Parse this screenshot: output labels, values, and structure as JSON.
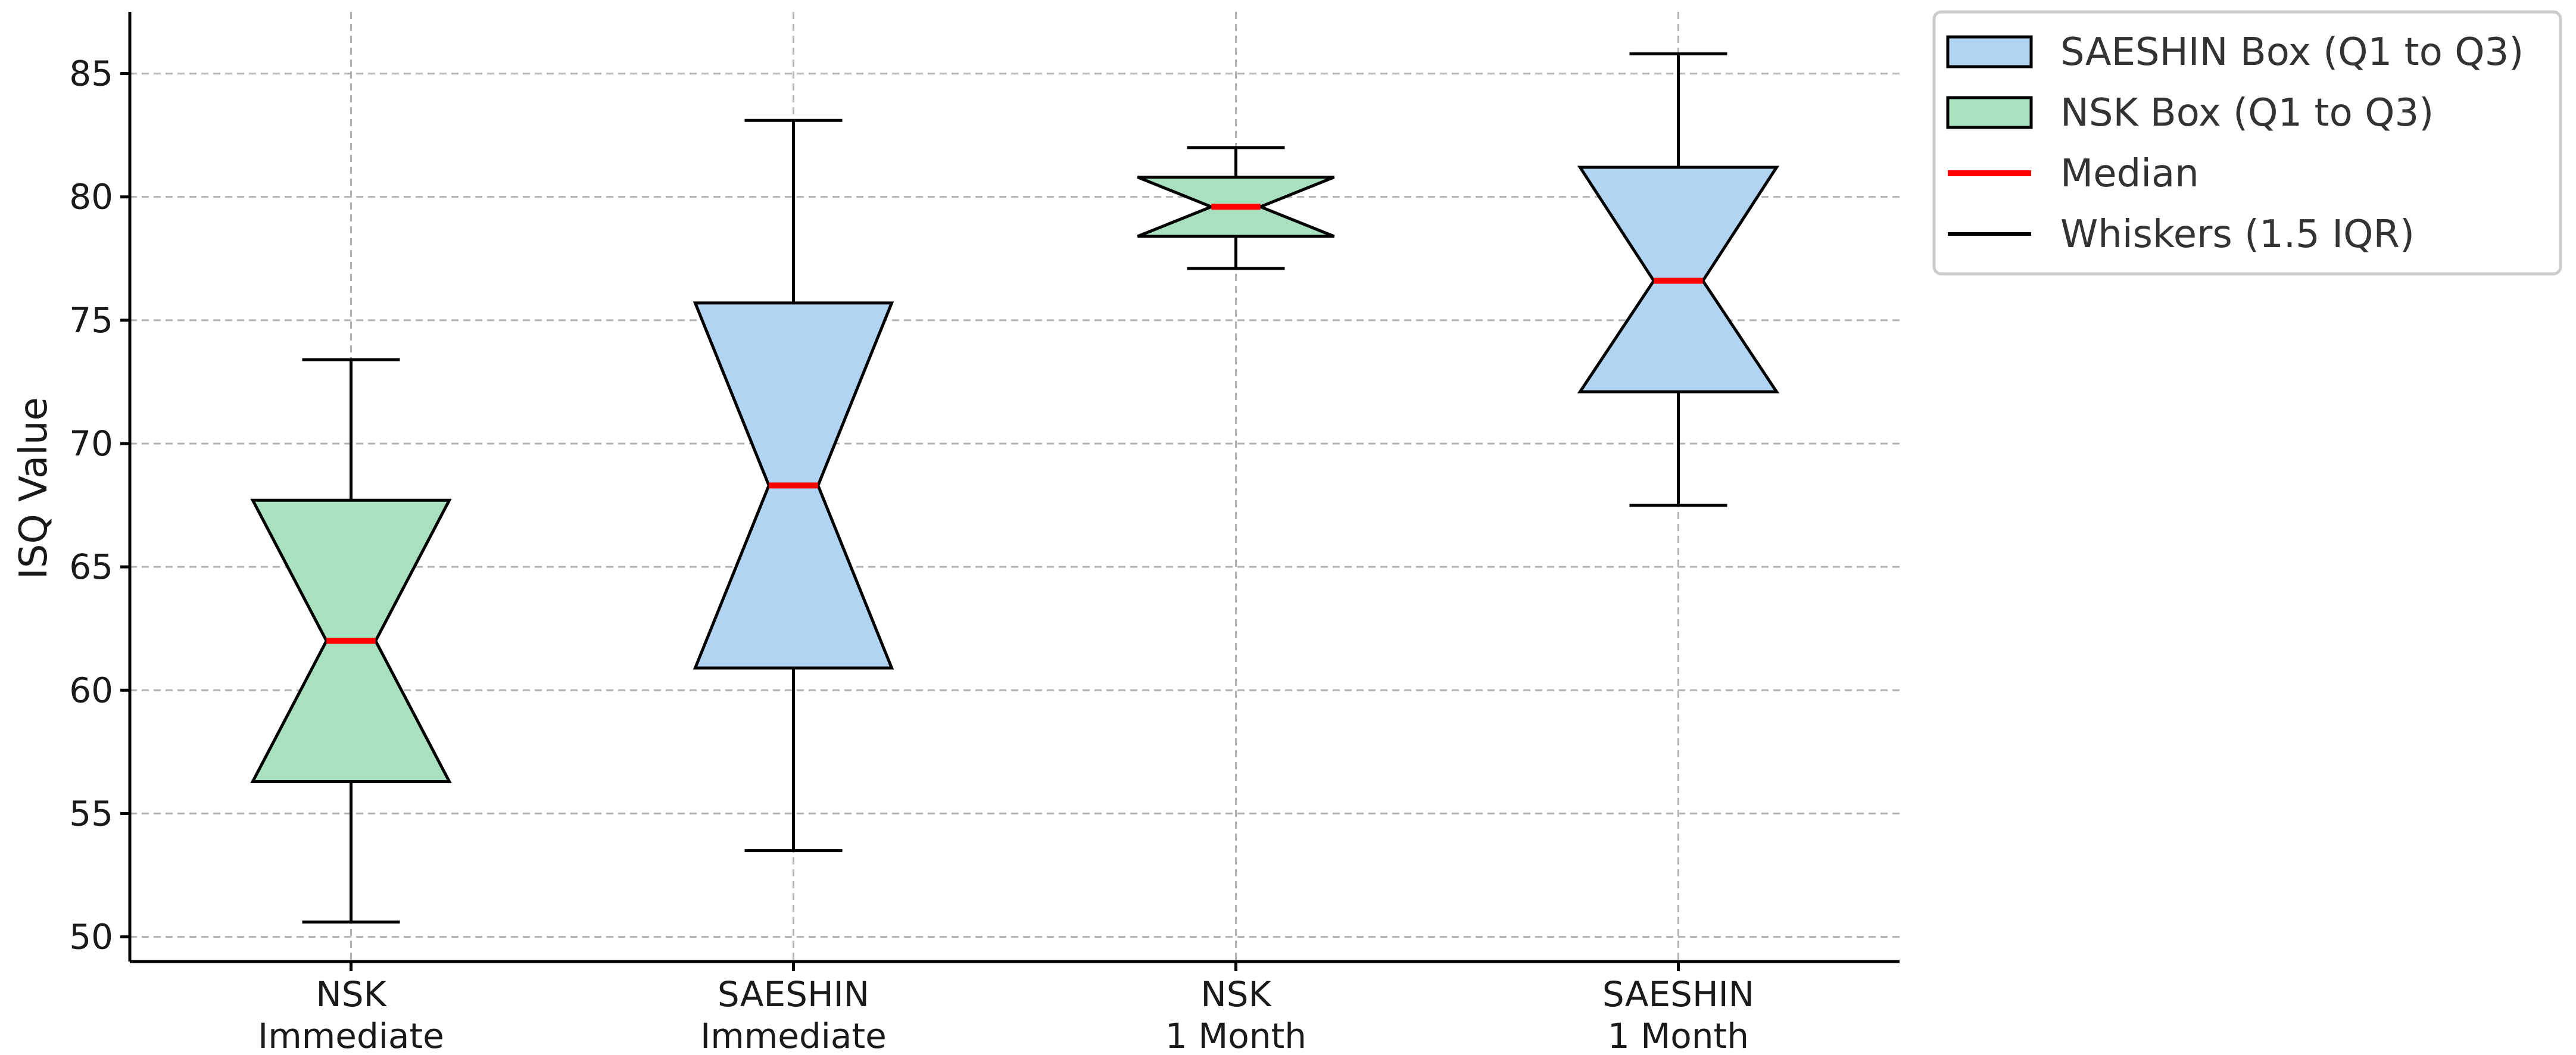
{
  "chart_data": {
    "type": "boxplot",
    "title": "",
    "xlabel": "",
    "ylabel": "ISQ Value",
    "ylim": [
      49,
      87.5
    ],
    "yticks": [
      50,
      55,
      60,
      65,
      70,
      75,
      80,
      85
    ],
    "grid": true,
    "legend_position": "outside-right-top",
    "categories": [
      {
        "lines": [
          "NSK",
          "Immediate"
        ],
        "group": "NSK"
      },
      {
        "lines": [
          "SAESHIN",
          "Immediate"
        ],
        "group": "SAESHIN"
      },
      {
        "lines": [
          "NSK",
          "1 Month"
        ],
        "group": "NSK"
      },
      {
        "lines": [
          "SAESHIN",
          "1 Month"
        ],
        "group": "SAESHIN"
      }
    ],
    "boxes": [
      {
        "whisker_low": 50.6,
        "q1": 56.3,
        "median": 62.0,
        "q3": 67.7,
        "whisker_high": 73.4
      },
      {
        "whisker_low": 53.5,
        "q1": 60.9,
        "median": 68.3,
        "q3": 75.7,
        "whisker_high": 83.1
      },
      {
        "whisker_low": 77.1,
        "q1": 78.4,
        "median": 79.6,
        "q3": 80.8,
        "whisker_high": 82.0
      },
      {
        "whisker_low": 67.5,
        "q1": 72.1,
        "median": 76.6,
        "q3": 81.2,
        "whisker_high": 85.8
      }
    ],
    "notch_halfwidth_fraction": 0.25,
    "colors": {
      "SAESHIN": "#b0d4f1",
      "NSK": "#a8e0c0",
      "median": "#ff0000",
      "whisker": "#000000"
    },
    "legend": [
      {
        "label": "SAESHIN Box (Q1 to Q3)",
        "kind": "box",
        "color_key": "SAESHIN"
      },
      {
        "label": "NSK Box (Q1 to Q3)",
        "kind": "box",
        "color_key": "NSK"
      },
      {
        "label": "Median",
        "kind": "line",
        "color_key": "median"
      },
      {
        "label": "Whiskers (1.5 IQR)",
        "kind": "line",
        "color_key": "whisker"
      }
    ]
  }
}
